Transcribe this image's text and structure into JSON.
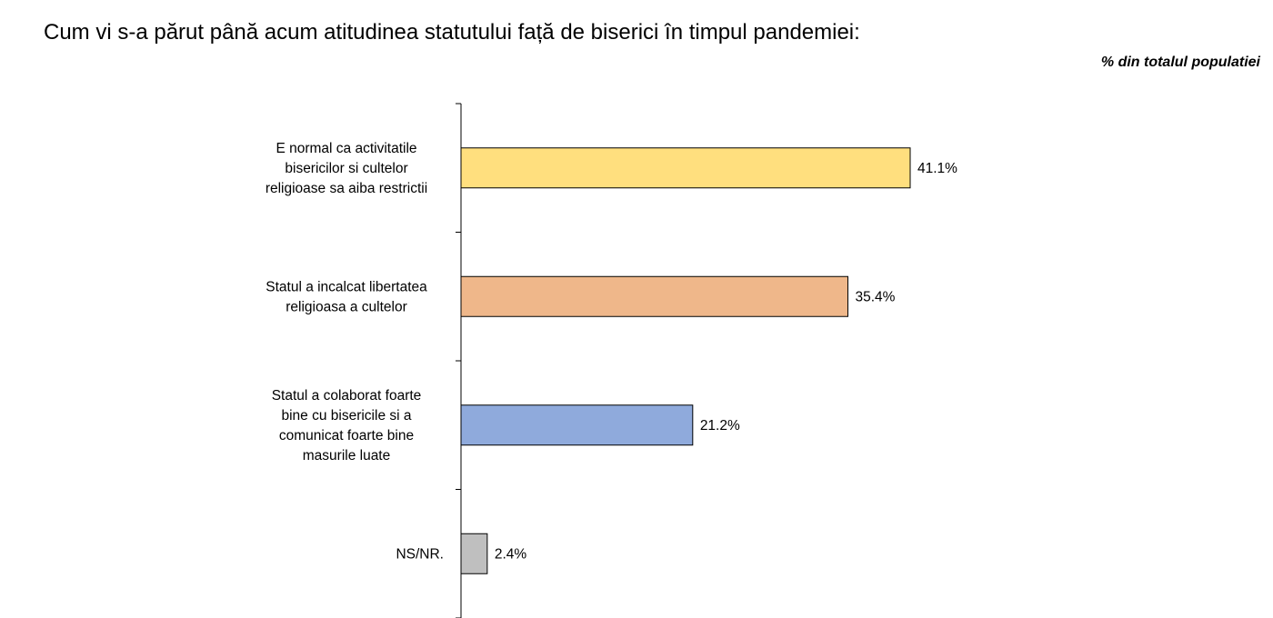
{
  "chart_data": {
    "type": "bar",
    "orientation": "horizontal",
    "title": "Cum vi s-a părut până acum atitudinea statutului față de biserici în timpul pandemiei:",
    "subtitle": "% din totalul populatiei",
    "categories": [
      [
        "E normal ca activitatile",
        "bisericilor si cultelor",
        "religioase sa aiba restrictii"
      ],
      [
        "Statul a incalcat libertatea",
        "religioasa a cultelor"
      ],
      [
        "Statul a colaborat foarte",
        "bine cu bisericile si a",
        "comunicat foarte bine",
        "masurile luate"
      ],
      [
        "NS/NR."
      ]
    ],
    "values": [
      41.1,
      35.4,
      21.2,
      2.4
    ],
    "value_labels": [
      "41.1%",
      "35.4%",
      "21.2%",
      "2.4%"
    ],
    "colors": [
      "#FFDF7E",
      "#EFB78A",
      "#8FAADC",
      "#BFBFBF"
    ],
    "xlim": [
      0,
      50
    ],
    "grid": false,
    "legend": "none"
  }
}
